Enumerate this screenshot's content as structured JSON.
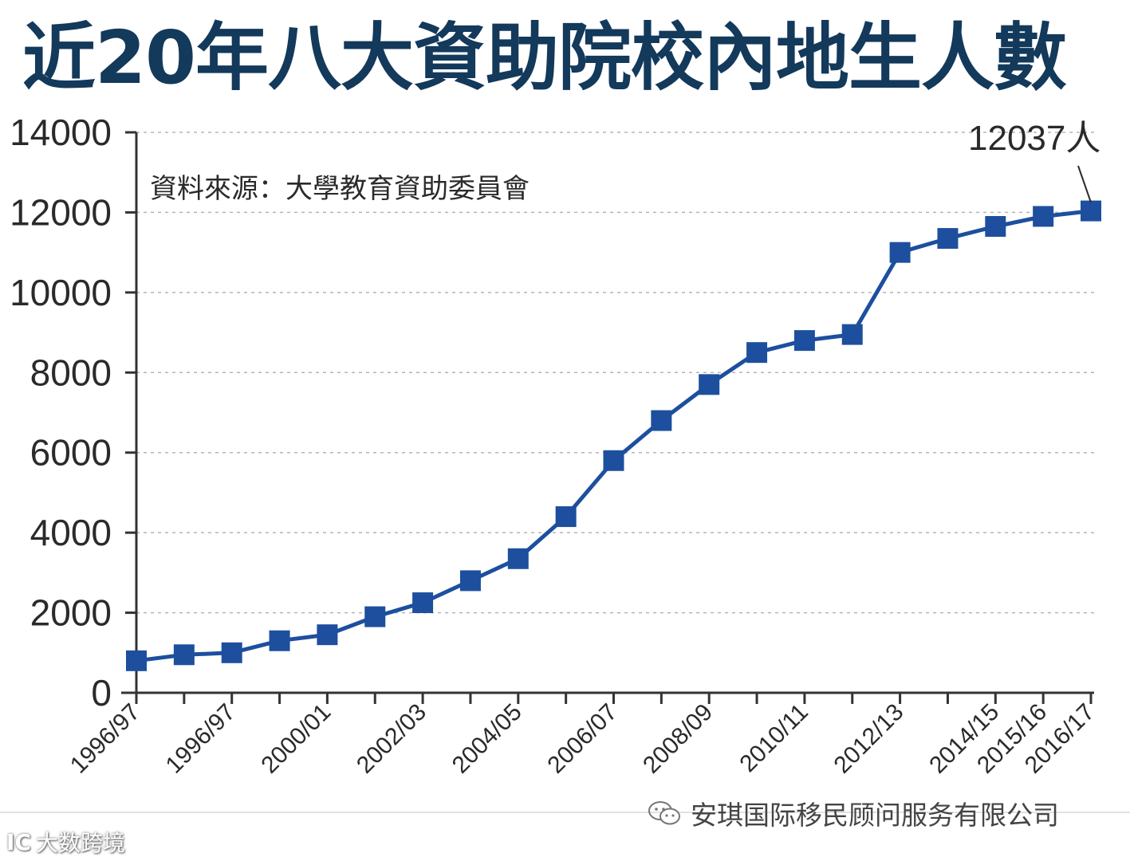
{
  "title": "近20年八大資助院校內地生人數",
  "source": "資料來源：大學教育資助委員會",
  "annotation": "12037人",
  "watermark": {
    "wechat_text": "安琪国际移民顾问服务有限公司",
    "brand_text": "大数跨境",
    "brand_logo": "IC"
  },
  "chart_data": {
    "type": "line",
    "title": "近20年八大資助院校內地生人數",
    "xlabel": "",
    "ylabel": "",
    "ylim": [
      0,
      14000
    ],
    "yticks": [
      0,
      2000,
      4000,
      6000,
      8000,
      10000,
      12000,
      14000
    ],
    "categories": [
      "1996/97",
      "",
      "1996/97",
      "",
      "2000/01",
      "",
      "2002/03",
      "",
      "2004/05",
      "",
      "2006/07",
      "",
      "2008/09",
      "",
      "2010/11",
      "",
      "2012/13",
      "",
      "2014/15",
      "2015/16",
      "2016/17"
    ],
    "series": [
      {
        "name": "",
        "color": "#1d4f9e",
        "values": [
          800,
          950,
          1000,
          1300,
          1450,
          1900,
          2250,
          2800,
          3350,
          4400,
          5800,
          6800,
          7700,
          8500,
          8800,
          8950,
          11000,
          11350,
          11650,
          11900,
          12037
        ]
      }
    ],
    "grid": "horizontal dashed",
    "legend": "none"
  }
}
